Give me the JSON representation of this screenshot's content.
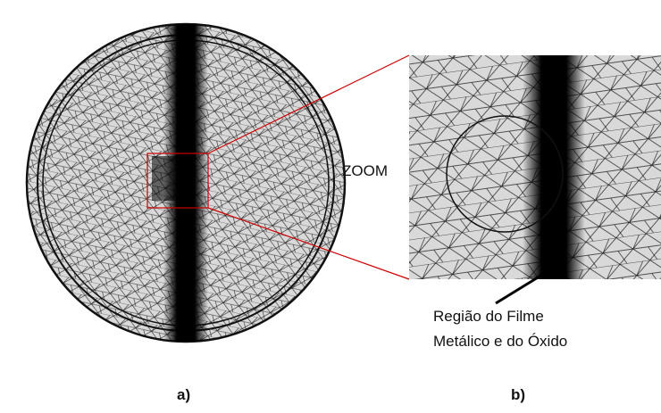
{
  "labels": {
    "zoom": "ZOOM",
    "region_line1": "Região do Filme",
    "region_line2": "Metálico e do Óxido",
    "panel_a": "a)",
    "panel_b": "b)"
  }
}
